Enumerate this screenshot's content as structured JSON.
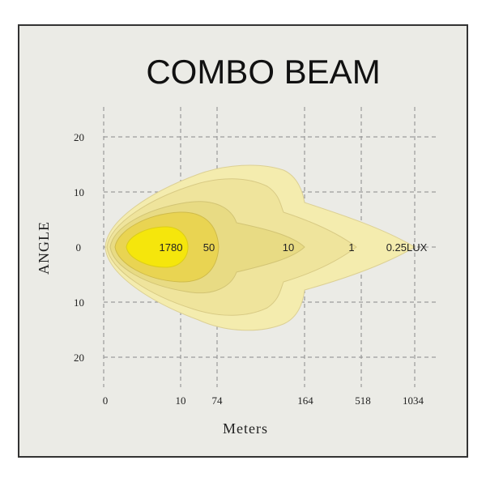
{
  "title": "COMBO  BEAM",
  "axes": {
    "x_title": "Meters",
    "y_title": "ANGLE",
    "x_ticks": [
      "0",
      "10",
      "74",
      "164",
      "518",
      "1034"
    ],
    "y_ticks": [
      "20",
      "10",
      "0",
      "10",
      "20"
    ]
  },
  "zones": [
    {
      "lux": "0.25LUX",
      "color": "#f4ecae",
      "stroke": "#dcd094"
    },
    {
      "lux": "1",
      "color": "#efe49c",
      "stroke": "#d8ca84"
    },
    {
      "lux": "10",
      "color": "#e8db84",
      "stroke": "#d2c474"
    },
    {
      "lux": "50",
      "color": "#e9d452",
      "stroke": "#cfbb4a"
    },
    {
      "lux": "1780",
      "color": "#f5e60c",
      "stroke": "#dccd18"
    }
  ],
  "colors": {
    "background": "#ebebe6",
    "border": "#333333",
    "grid": "#8a8a8a"
  }
}
